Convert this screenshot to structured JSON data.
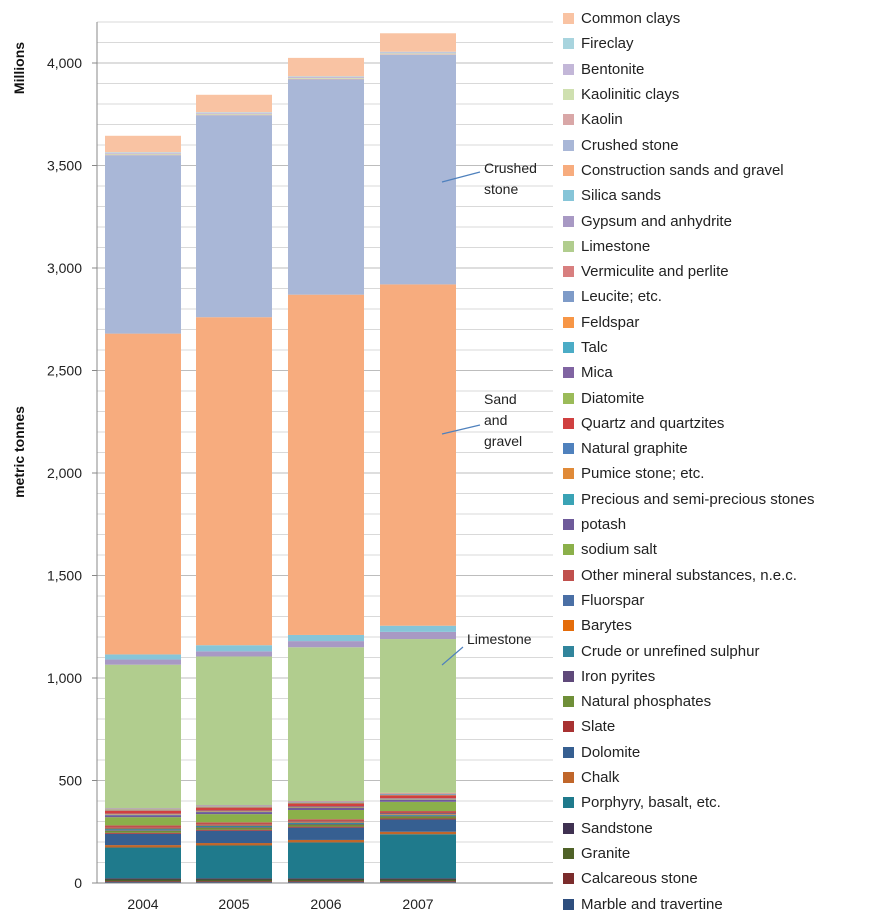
{
  "chart_data": {
    "type": "bar",
    "stacked": true,
    "categories": [
      "2004",
      "2005",
      "2006",
      "2007"
    ],
    "ylabel": "metric tonnes",
    "yunit": "Millions",
    "ylim": [
      0,
      4200
    ],
    "yticks": [
      0,
      500,
      1000,
      1500,
      2000,
      2500,
      3000,
      3500,
      4000
    ],
    "ytick_labels": [
      "0",
      "500",
      "1,000",
      "1,500",
      "2,000",
      "2,500",
      "3,000",
      "3,500",
      "4,000"
    ],
    "grid": true,
    "legend_position": "right",
    "series": [
      {
        "name": "Marble and travertine",
        "color": "#2e4e7e",
        "values": [
          5,
          5,
          5,
          5
        ]
      },
      {
        "name": "Calcareous stone",
        "color": "#7b2c2c",
        "values": [
          4,
          4,
          4,
          4
        ]
      },
      {
        "name": "Granite",
        "color": "#4f6228",
        "values": [
          8,
          8,
          8,
          8
        ]
      },
      {
        "name": "Sandstone",
        "color": "#3f3151",
        "values": [
          6,
          6,
          6,
          6
        ]
      },
      {
        "name": "Porphyry, basalt, etc.",
        "color": "#1f7a8c",
        "values": [
          150,
          160,
          175,
          215
        ]
      },
      {
        "name": "Chalk",
        "color": "#c0662a",
        "values": [
          12,
          12,
          12,
          12
        ]
      },
      {
        "name": "Dolomite",
        "color": "#365f91",
        "values": [
          55,
          60,
          60,
          60
        ]
      },
      {
        "name": "Slate",
        "color": "#a83232",
        "values": [
          5,
          5,
          5,
          5
        ]
      },
      {
        "name": "Natural phosphates",
        "color": "#6f8f38",
        "values": [
          10,
          10,
          10,
          10
        ]
      },
      {
        "name": "Iron pyrites",
        "color": "#5f497a",
        "values": [
          3,
          3,
          3,
          3
        ]
      },
      {
        "name": "Crude or unrefined sulphur",
        "color": "#31859c",
        "values": [
          5,
          5,
          5,
          5
        ]
      },
      {
        "name": "Barytes",
        "color": "#e46c0a",
        "values": [
          3,
          3,
          3,
          3
        ]
      },
      {
        "name": "Fluorspar",
        "color": "#4a6fa5",
        "values": [
          3,
          3,
          3,
          3
        ]
      },
      {
        "name": "Other mineral substances, n.e.c.",
        "color": "#c0504d",
        "values": [
          12,
          12,
          12,
          12
        ]
      },
      {
        "name": "sodium salt",
        "color": "#8bb04a",
        "values": [
          40,
          40,
          45,
          45
        ]
      },
      {
        "name": "potash",
        "color": "#6e5a9a",
        "values": [
          10,
          10,
          10,
          10
        ]
      },
      {
        "name": "Precious and semi-precious stones",
        "color": "#3aa3b5",
        "values": [
          2,
          2,
          2,
          2
        ]
      },
      {
        "name": "Pumice stone; etc.",
        "color": "#e08a38",
        "values": [
          3,
          3,
          3,
          3
        ]
      },
      {
        "name": "Natural graphite",
        "color": "#4f81bd",
        "values": [
          2,
          2,
          2,
          2
        ]
      },
      {
        "name": "Quartz and quartzites",
        "color": "#d04040",
        "values": [
          15,
          15,
          15,
          15
        ]
      },
      {
        "name": "Diatomite",
        "color": "#9bbb59",
        "values": [
          2,
          2,
          2,
          2
        ]
      },
      {
        "name": "Mica",
        "color": "#8064a2",
        "values": [
          2,
          2,
          2,
          2
        ]
      },
      {
        "name": "Talc",
        "color": "#4bacc6",
        "values": [
          2,
          2,
          2,
          2
        ]
      },
      {
        "name": "Feldspar",
        "color": "#f79646",
        "values": [
          2,
          2,
          2,
          2
        ]
      },
      {
        "name": "Leucite; etc.",
        "color": "#7e9bc8",
        "values": [
          2,
          2,
          2,
          2
        ]
      },
      {
        "name": "Vermiculite and perlite",
        "color": "#d87f7f",
        "values": [
          2,
          2,
          2,
          2
        ]
      },
      {
        "name": "Limestone",
        "color": "#b1cd8e",
        "values": [
          700,
          725,
          750,
          750
        ]
      },
      {
        "name": "Gypsum and anhydrite",
        "color": "#a899c4",
        "values": [
          25,
          25,
          30,
          35
        ]
      },
      {
        "name": "Silica sands",
        "color": "#86c5d8",
        "values": [
          25,
          30,
          30,
          30
        ]
      },
      {
        "name": "Construction sands and gravel",
        "color": "#f7ac7e",
        "values": [
          1565,
          1600,
          1660,
          1665
        ]
      },
      {
        "name": "Crushed stone",
        "color": "#a9b7d7",
        "values": [
          870,
          985,
          1050,
          1120
        ]
      },
      {
        "name": "Kaolin",
        "color": "#d9a7a7",
        "values": [
          3,
          3,
          3,
          3
        ]
      },
      {
        "name": "Kaolinitic clays",
        "color": "#cfe0b0",
        "values": [
          4,
          4,
          4,
          4
        ]
      },
      {
        "name": "Bentonite",
        "color": "#c3b7d8",
        "values": [
          5,
          5,
          5,
          5
        ]
      },
      {
        "name": "Fireclay",
        "color": "#a8d4de",
        "values": [
          3,
          3,
          3,
          3
        ]
      },
      {
        "name": "Common clays",
        "color": "#f9c3a3",
        "values": [
          80,
          85,
          90,
          90
        ]
      }
    ],
    "annotations": [
      {
        "lines": [
          "Crushed",
          "stone"
        ]
      },
      {
        "lines": [
          "Sand",
          "and",
          "gravel"
        ]
      },
      {
        "lines": [
          "Limestone"
        ]
      }
    ]
  }
}
